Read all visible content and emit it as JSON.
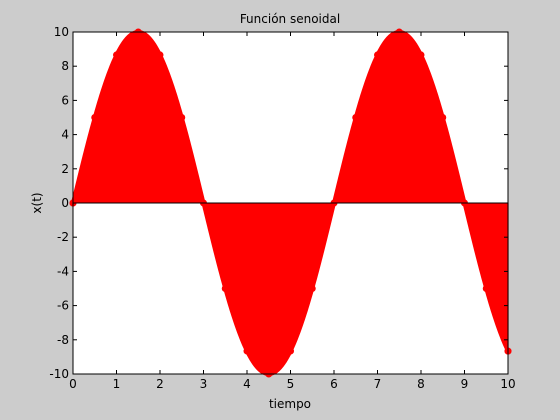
{
  "chart_data": {
    "type": "area",
    "title": "Función senoidal",
    "xlabel": "tiempo",
    "ylabel": "x(t)",
    "xlim": [
      0,
      10
    ],
    "ylim": [
      -10,
      10
    ],
    "xticks": [
      0,
      1,
      2,
      3,
      4,
      5,
      6,
      7,
      8,
      9,
      10
    ],
    "yticks": [
      -10,
      -8,
      -6,
      -4,
      -2,
      0,
      2,
      4,
      6,
      8,
      10
    ],
    "xtick_labels": [
      "0",
      "1",
      "2",
      "3",
      "4",
      "5",
      "6",
      "7",
      "8",
      "9",
      "10"
    ],
    "ytick_labels": [
      "-10",
      "-8",
      "-6",
      "-4",
      "-2",
      "0",
      "2",
      "4",
      "6",
      "8",
      "10"
    ],
    "series": [
      {
        "function": "x(t) = 10·sin((π/3)·t)",
        "amplitude": 10,
        "period": 6,
        "x_start": 0,
        "x_end": 10,
        "color": "#ff0000",
        "style": "stem",
        "x": [
          0,
          0.5,
          1,
          1.5,
          2,
          2.5,
          3,
          3.5,
          4,
          4.5,
          5,
          5.5,
          6,
          6.5,
          7,
          7.5,
          8,
          8.5,
          9,
          9.5,
          10
        ],
        "values": [
          0,
          5,
          8.66,
          10,
          8.66,
          5,
          0,
          -5,
          -8.66,
          -10,
          -8.66,
          -5,
          0,
          5,
          8.66,
          10,
          8.66,
          5,
          0,
          -5,
          -8.66
        ]
      }
    ],
    "grid": false,
    "legend": "none"
  },
  "colors": {
    "figure_background": "#cccccc",
    "axes_background": "#ffffff",
    "series": "#ff0000"
  }
}
